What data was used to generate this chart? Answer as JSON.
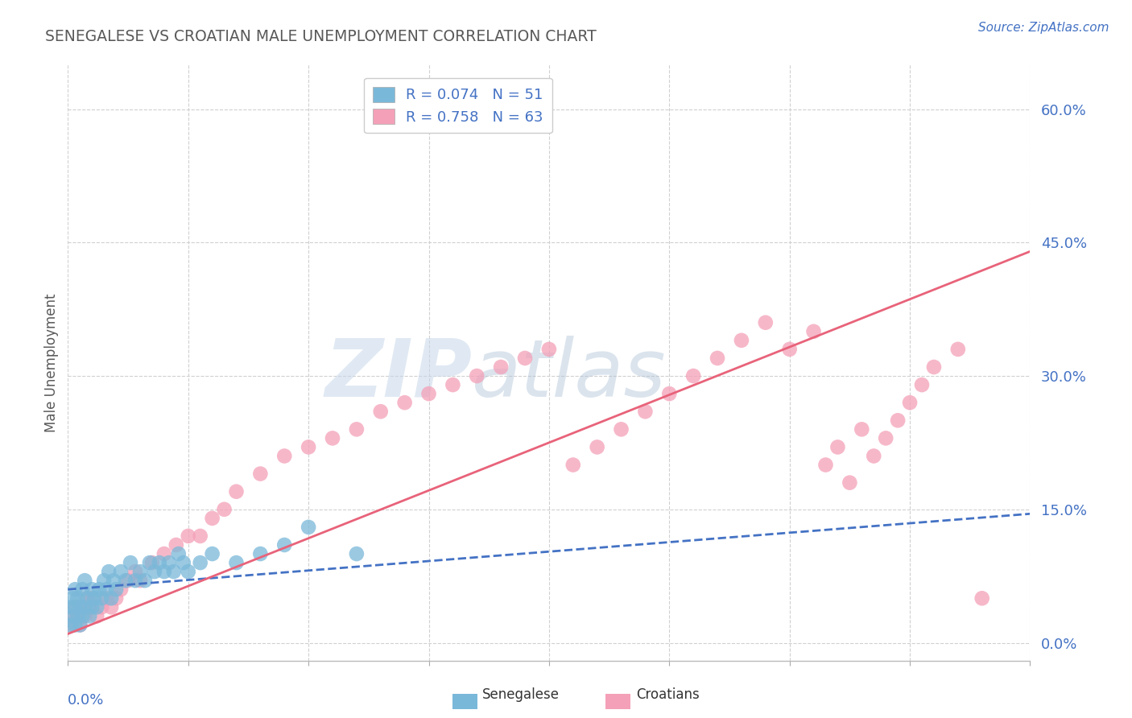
{
  "title": "SENEGALESE VS CROATIAN MALE UNEMPLOYMENT CORRELATION CHART",
  "source": "Source: ZipAtlas.com",
  "xlim": [
    0.0,
    0.4
  ],
  "ylim": [
    -0.02,
    0.65
  ],
  "yticks": [
    0.0,
    0.15,
    0.3,
    0.45,
    0.6
  ],
  "ytick_labels": [
    "0.0%",
    "15.0%",
    "30.0%",
    "45.0%",
    "60.0%"
  ],
  "ylabel": "Male Unemployment",
  "legend_r1": "0.074",
  "legend_n1": "51",
  "legend_r2": "0.758",
  "legend_n2": "63",
  "senegalese_color": "#7ab8d9",
  "croatian_color": "#f4a0b8",
  "senegalese_line_color": "#4472c4",
  "croatian_line_color": "#e8637a",
  "watermark_zip": "ZIP",
  "watermark_atlas": "atlas",
  "watermark_color_zip": "#c8d8e8",
  "watermark_color_atlas": "#b8c8d8",
  "background_color": "#ffffff",
  "title_color": "#595959",
  "axis_label_color": "#4472c4",
  "grid_color": "#d0d0d0",
  "senegalese_x": [
    0.001,
    0.001,
    0.002,
    0.002,
    0.003,
    0.003,
    0.003,
    0.004,
    0.004,
    0.005,
    0.005,
    0.006,
    0.006,
    0.007,
    0.007,
    0.008,
    0.009,
    0.01,
    0.01,
    0.011,
    0.012,
    0.013,
    0.014,
    0.015,
    0.016,
    0.017,
    0.018,
    0.019,
    0.02,
    0.022,
    0.024,
    0.026,
    0.028,
    0.03,
    0.032,
    0.034,
    0.036,
    0.038,
    0.04,
    0.042,
    0.044,
    0.046,
    0.048,
    0.05,
    0.055,
    0.06,
    0.07,
    0.08,
    0.09,
    0.1,
    0.12
  ],
  "senegalese_y": [
    0.02,
    0.04,
    0.03,
    0.05,
    0.02,
    0.04,
    0.06,
    0.03,
    0.05,
    0.02,
    0.04,
    0.03,
    0.06,
    0.04,
    0.07,
    0.05,
    0.03,
    0.04,
    0.06,
    0.05,
    0.04,
    0.06,
    0.05,
    0.07,
    0.06,
    0.08,
    0.05,
    0.07,
    0.06,
    0.08,
    0.07,
    0.09,
    0.07,
    0.08,
    0.07,
    0.09,
    0.08,
    0.09,
    0.08,
    0.09,
    0.08,
    0.1,
    0.09,
    0.08,
    0.09,
    0.1,
    0.09,
    0.1,
    0.11,
    0.13,
    0.1
  ],
  "croatian_x": [
    0.001,
    0.002,
    0.003,
    0.004,
    0.005,
    0.006,
    0.007,
    0.008,
    0.009,
    0.01,
    0.012,
    0.014,
    0.016,
    0.018,
    0.02,
    0.022,
    0.025,
    0.028,
    0.03,
    0.035,
    0.04,
    0.045,
    0.05,
    0.055,
    0.06,
    0.065,
    0.07,
    0.08,
    0.09,
    0.1,
    0.11,
    0.12,
    0.13,
    0.14,
    0.15,
    0.16,
    0.17,
    0.18,
    0.19,
    0.2,
    0.21,
    0.22,
    0.23,
    0.24,
    0.25,
    0.26,
    0.27,
    0.28,
    0.29,
    0.3,
    0.31,
    0.315,
    0.32,
    0.325,
    0.33,
    0.335,
    0.34,
    0.345,
    0.35,
    0.355,
    0.36,
    0.37,
    0.38
  ],
  "croatian_y": [
    0.02,
    0.03,
    0.04,
    0.03,
    0.02,
    0.04,
    0.03,
    0.05,
    0.04,
    0.05,
    0.03,
    0.04,
    0.05,
    0.04,
    0.05,
    0.06,
    0.07,
    0.08,
    0.07,
    0.09,
    0.1,
    0.11,
    0.12,
    0.12,
    0.14,
    0.15,
    0.17,
    0.19,
    0.21,
    0.22,
    0.23,
    0.24,
    0.26,
    0.27,
    0.28,
    0.29,
    0.3,
    0.31,
    0.32,
    0.33,
    0.2,
    0.22,
    0.24,
    0.26,
    0.28,
    0.3,
    0.32,
    0.34,
    0.36,
    0.33,
    0.35,
    0.2,
    0.22,
    0.18,
    0.24,
    0.21,
    0.23,
    0.25,
    0.27,
    0.29,
    0.31,
    0.33,
    0.05
  ],
  "cro_line_x0": 0.0,
  "cro_line_y0": 0.01,
  "cro_line_x1": 0.4,
  "cro_line_y1": 0.44,
  "sen_line_x0": 0.0,
  "sen_line_y0": 0.06,
  "sen_line_x1": 0.4,
  "sen_line_y1": 0.145
}
